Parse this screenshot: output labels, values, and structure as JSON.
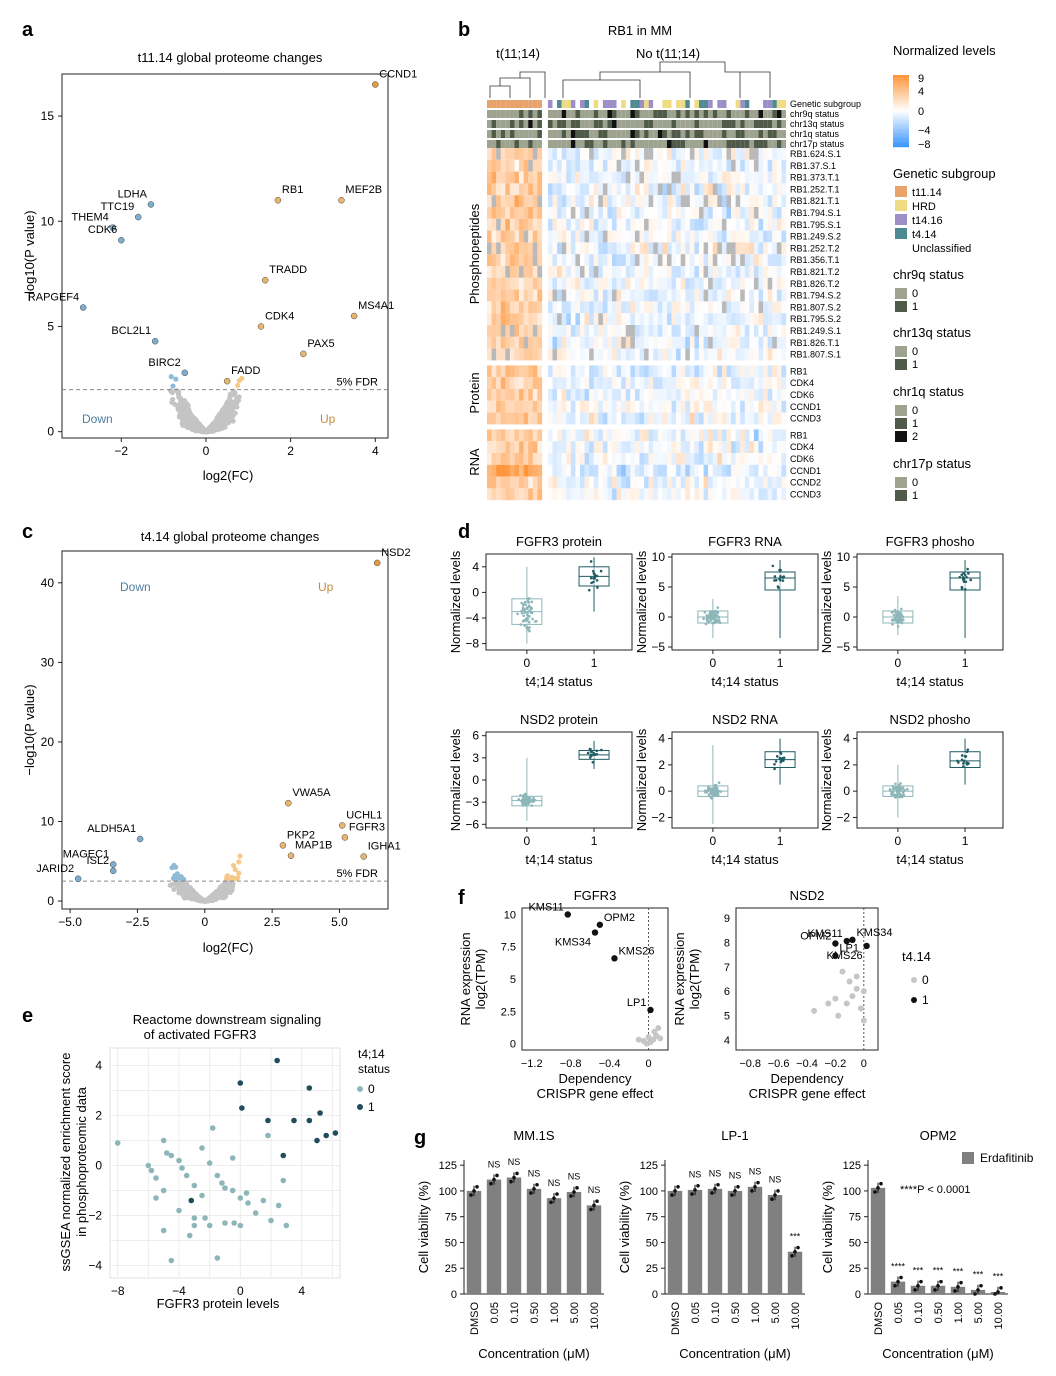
{
  "panels": {
    "a": {
      "letter": "a",
      "title": "t11.14 global proteome changes",
      "xlabel": "log2(FC)",
      "ylabel": "−log10(P value)",
      "xticks": [
        "−2",
        "0",
        "2",
        "4"
      ],
      "yticks": [
        "0",
        "5",
        "10",
        "15"
      ],
      "fdr": "5% FDR",
      "down": "Down",
      "up": "Up"
    },
    "b": {
      "letter": "b",
      "title": "RB1 in MM",
      "group1": "t(11;14)",
      "group2": "No t(11;14)",
      "annotation_rows": [
        "Genetic subgroup",
        "chr9q status",
        "chr13q status",
        "chr1q status",
        "chr17p status"
      ],
      "section_labels": [
        "Phosphopeptides",
        "Protein",
        "RNA"
      ],
      "phospho_rows": [
        "RB1.624.S.1",
        "RB1.37.S.1",
        "RB1.373.T.1",
        "RB1.252.T.1",
        "RB1.821.T.1",
        "RB1.794.S.1",
        "RB1.795.S.1",
        "RB1.249.S.2",
        "RB1.252.T.2",
        "RB1.356.T.1",
        "RB1.821.T.2",
        "RB1.826.T.2",
        "RB1.794.S.2",
        "RB1.807.S.2",
        "RB1.795.S.2",
        "RB1.249.S.1",
        "RB1.826.T.1",
        "RB1.807.S.1"
      ],
      "protein_rows": [
        "RB1",
        "CDK4",
        "CDK6",
        "CCND1",
        "CCND3"
      ],
      "rna_rows": [
        "RB1",
        "CDK4",
        "CDK6",
        "CCND1",
        "CCND2",
        "CCND3"
      ],
      "legend": {
        "scale_title": "Normalized levels",
        "scale_ticks": [
          "9",
          "4",
          "0",
          "−4",
          "−8"
        ],
        "subgroup_title": "Genetic subgroup",
        "subgroups": [
          {
            "name": "t11.14",
            "color": "#e8a36a"
          },
          {
            "name": "HRD",
            "color": "#efdc82"
          },
          {
            "name": "t14.16",
            "color": "#9d8ec7"
          },
          {
            "name": "t4.14",
            "color": "#4d8a94"
          },
          {
            "name": "Unclassified",
            "color": "#ffffff"
          }
        ],
        "chr9q_title": "chr9q status",
        "chr9q": [
          "0",
          "1"
        ],
        "chr13q_title": "chr13q status",
        "chr13q": [
          "0",
          "1"
        ],
        "chr1q_title": "chr1q status",
        "chr1q": [
          "0",
          "1",
          "2"
        ],
        "chr17p_title": "chr17p status",
        "chr17p": [
          "0",
          "1"
        ]
      }
    },
    "c": {
      "letter": "c",
      "title": "t4.14 global proteome changes",
      "xlabel": "log2(FC)",
      "ylabel": "−log10(P value)",
      "xticks": [
        "−5.0",
        "−2.5",
        "0",
        "2.5",
        "5.0"
      ],
      "yticks": [
        "0",
        "10",
        "20",
        "30",
        "40"
      ],
      "fdr": "5% FDR",
      "down": "Down",
      "up": "Up"
    },
    "d": {
      "letter": "d",
      "xlabel": "t4;14 status",
      "ylabel": "Normalized levels",
      "xticks": [
        "0",
        "1"
      ]
    },
    "e": {
      "letter": "e",
      "title_line1": "Reactome downstream signaling",
      "title_line2": "of activated FGFR3",
      "xlabel": "FGFR3 protein levels",
      "ylabel_line1": "ssGSEA normalized enrichment score",
      "ylabel_line2": "in phosphoproteomic data",
      "xticks": [
        "−8",
        "−4",
        "0",
        "4"
      ],
      "yticks": [
        "−4",
        "−2",
        "0",
        "2",
        "4"
      ],
      "legend_title_line1": "t4;14",
      "legend_title_line2": "status",
      "legend": [
        "0",
        "1"
      ]
    },
    "f": {
      "letter": "f",
      "xlabel_line1": "Dependency",
      "xlabel_line2": "CRISPR gene effect",
      "ylabel_line1": "RNA expression",
      "ylabel_line2": "log2(TPM)",
      "legend_title": "t4.14",
      "legend": [
        "0",
        "1"
      ]
    },
    "g": {
      "letter": "g",
      "ylabel": "Cell viability (%)",
      "xlabel": "Concentration (μM)",
      "categories": [
        "DMSO",
        "0.05",
        "0.10",
        "0.50",
        "1.00",
        "5.00",
        "10.00"
      ],
      "yticks": [
        "0",
        "25",
        "50",
        "75",
        "100",
        "125"
      ],
      "legend": "Erdafitinib",
      "pvalue_note": "****P < 0.0001"
    }
  },
  "chart_data": [
    {
      "panel": "a",
      "type": "scatter",
      "title": "t11.14 global proteome changes",
      "xlabel": "log2(FC)",
      "ylabel": "−log10(P value)",
      "xlim": [
        -3.4,
        4.3
      ],
      "ylim": [
        -0.3,
        17
      ],
      "threshold_y": 2.0,
      "labeled_points": [
        {
          "label": "CCND1",
          "x": 4.0,
          "y": 16.5
        },
        {
          "label": "LDHA",
          "x": -1.3,
          "y": 10.8
        },
        {
          "label": "TTC19",
          "x": -1.6,
          "y": 10.2
        },
        {
          "label": "THEM4",
          "x": -2.2,
          "y": 9.7
        },
        {
          "label": "CDK6",
          "x": -2.0,
          "y": 9.1
        },
        {
          "label": "RB1",
          "x": 1.7,
          "y": 11.0
        },
        {
          "label": "MEF2B",
          "x": 3.2,
          "y": 11.0
        },
        {
          "label": "RAPGEF4",
          "x": -2.9,
          "y": 5.9
        },
        {
          "label": "TRADD",
          "x": 1.4,
          "y": 7.2
        },
        {
          "label": "CDK4",
          "x": 1.3,
          "y": 5.0
        },
        {
          "label": "MS4A1",
          "x": 3.5,
          "y": 5.5
        },
        {
          "label": "BCL2L1",
          "x": -1.2,
          "y": 4.3
        },
        {
          "label": "PAX5",
          "x": 2.3,
          "y": 3.7
        },
        {
          "label": "BIRC2",
          "x": -0.5,
          "y": 2.8
        },
        {
          "label": "FADD",
          "x": 0.5,
          "y": 2.4
        }
      ],
      "colors": {
        "down": "#8ebbd8",
        "up": "#f6c98b",
        "ns": "#c4c4c4",
        "highlight": "#e39b3e"
      }
    },
    {
      "panel": "b",
      "type": "heatmap",
      "title": "RB1 in MM",
      "columns_t11_14": 12,
      "columns_other": 52,
      "rows": [
        "RB1.624.S.1",
        "RB1.37.S.1",
        "RB1.373.T.1",
        "RB1.252.T.1",
        "RB1.821.T.1",
        "RB1.794.S.1",
        "RB1.795.S.1",
        "RB1.249.S.2",
        "RB1.252.T.2",
        "RB1.356.T.1",
        "RB1.821.T.2",
        "RB1.826.T.2",
        "RB1.794.S.2",
        "RB1.807.S.2",
        "RB1.795.S.2",
        "RB1.249.S.1",
        "RB1.826.T.1",
        "RB1.807.S.1",
        "RB1",
        "CDK4",
        "CDK6",
        "CCND1",
        "CCND3",
        "RB1",
        "CDK4",
        "CDK6",
        "CCND1",
        "CCND2",
        "CCND3"
      ],
      "color_range": [
        -8,
        9
      ]
    },
    {
      "panel": "c",
      "type": "scatter",
      "title": "t4.14 global proteome changes",
      "xlabel": "log2(FC)",
      "ylabel": "−log10(P value)",
      "xlim": [
        -5.3,
        6.8
      ],
      "ylim": [
        -1,
        44
      ],
      "threshold_y": 2.5,
      "labeled_points": [
        {
          "label": "NSD2",
          "x": 6.4,
          "y": 42.5
        },
        {
          "label": "VWA5A",
          "x": 3.1,
          "y": 12.3
        },
        {
          "label": "UCHL1",
          "x": 5.1,
          "y": 9.5
        },
        {
          "label": "FGFR3",
          "x": 5.2,
          "y": 8.0
        },
        {
          "label": "IGHA1",
          "x": 5.9,
          "y": 5.6
        },
        {
          "label": "PKP2",
          "x": 2.9,
          "y": 7.0
        },
        {
          "label": "MAP1B",
          "x": 3.2,
          "y": 5.7
        },
        {
          "label": "ALDH5A1",
          "x": -2.4,
          "y": 7.8
        },
        {
          "label": "MAGEC1",
          "x": -3.4,
          "y": 4.6
        },
        {
          "label": "JARID2",
          "x": -4.7,
          "y": 2.8
        },
        {
          "label": "ISL2",
          "x": -3.4,
          "y": 3.8
        }
      ]
    },
    {
      "panel": "d",
      "type": "box",
      "x": [
        "0",
        "1"
      ],
      "plots": [
        {
          "name": "FGFR3 protein",
          "ylim": [
            -9,
            6
          ],
          "yticks": [
            -8,
            -4,
            0,
            4
          ],
          "group0": {
            "q1": -5,
            "median": -3,
            "q3": -1,
            "low": -8,
            "high": 4
          },
          "group1": {
            "q1": 1,
            "median": 2.5,
            "q3": 4,
            "low": -3,
            "high": 5.5
          }
        },
        {
          "name": "FGFR3 RNA",
          "ylim": [
            -5.5,
            10.5
          ],
          "yticks": [
            -5,
            0,
            5,
            10
          ],
          "group0": {
            "q1": -1,
            "median": 0,
            "q3": 1,
            "low": -3.5,
            "high": 3
          },
          "group1": {
            "q1": 4.5,
            "median": 6.5,
            "q3": 7.5,
            "low": -3.5,
            "high": 9.5
          }
        },
        {
          "name": "FGFR3 phosho",
          "ylim": [
            -5.5,
            10.5
          ],
          "yticks": [
            -5,
            0,
            5,
            10
          ],
          "group0": {
            "q1": -1,
            "median": 0,
            "q3": 1,
            "low": -3,
            "high": 3.5
          },
          "group1": {
            "q1": 4.5,
            "median": 6.5,
            "q3": 7.5,
            "low": -3.5,
            "high": 9.5
          }
        },
        {
          "name": "NSD2 protein",
          "ylim": [
            -6.5,
            6.5
          ],
          "yticks": [
            -6,
            -3,
            0,
            3,
            6
          ],
          "group0": {
            "q1": -3.5,
            "median": -2.8,
            "q3": -2.2,
            "low": -5.5,
            "high": 3
          },
          "group1": {
            "q1": 2.8,
            "median": 3.4,
            "q3": 4,
            "low": 1.5,
            "high": 5.3
          }
        },
        {
          "name": "NSD2 RNA",
          "ylim": [
            -2.8,
            4.5
          ],
          "yticks": [
            -2,
            0,
            2,
            4
          ],
          "group0": {
            "q1": -0.4,
            "median": 0,
            "q3": 0.4,
            "low": -2.5,
            "high": 3.5
          },
          "group1": {
            "q1": 1.8,
            "median": 2.4,
            "q3": 3,
            "low": 0.5,
            "high": 4
          }
        },
        {
          "name": "NSD2 phosho",
          "ylim": [
            -2.8,
            4.5
          ],
          "yticks": [
            -2,
            0,
            2,
            4
          ],
          "group0": {
            "q1": -0.4,
            "median": 0,
            "q3": 0.4,
            "low": -2,
            "high": 2
          },
          "group1": {
            "q1": 1.8,
            "median": 2.3,
            "q3": 3,
            "low": 0.5,
            "high": 4
          }
        }
      ]
    },
    {
      "panel": "e",
      "type": "scatter",
      "title": "Reactome downstream signaling of activated FGFR3",
      "xlim": [
        -8.5,
        6.5
      ],
      "ylim": [
        -4.5,
        4.7
      ],
      "series": [
        {
          "name": "0",
          "x": [
            -8,
            -6,
            -5.5,
            -5,
            -5,
            -4.5,
            -4,
            -4,
            -3.5,
            -3,
            -3,
            -2.5,
            -2.5,
            -2,
            -2,
            -1.5,
            -1.5,
            -1,
            -1,
            -0.5,
            -0.5,
            0,
            0,
            0.5,
            1,
            1.5,
            2,
            2.5,
            3,
            -5.5,
            -5,
            -4.5,
            -3.8,
            -3,
            -2.3,
            -1.8,
            -1.2,
            -0.4,
            0.4,
            1.8,
            2.8,
            -5.8,
            -4.8,
            -3.3
          ],
          "y": [
            0.9,
            0,
            -0.5,
            1,
            -1,
            0.4,
            -1.8,
            0.2,
            -0.4,
            -2.1,
            -0.8,
            0.7,
            -1.2,
            0.1,
            -2.4,
            -0.4,
            -3.7,
            -0.9,
            -2.3,
            0.3,
            -1,
            -1.3,
            -2.4,
            -1.5,
            -1.9,
            -1.4,
            -2.2,
            -1.6,
            -2.4,
            -1.3,
            -2.6,
            -3.8,
            -0.1,
            -2.4,
            -2.1,
            1.5,
            -0.7,
            -2.3,
            -1.1,
            1.2,
            -0.6,
            -0.2,
            0.5,
            -2.8
          ]
        },
        {
          "name": "1",
          "x": [
            0,
            0.1,
            2.4,
            3.5,
            4.5,
            4.5,
            5.2,
            5.6,
            6.2,
            5,
            1.8,
            -3.2,
            2.8
          ],
          "y": [
            3.3,
            2.3,
            4.2,
            1.8,
            3.1,
            1.8,
            2.1,
            1.2,
            1.3,
            1.0,
            1.8,
            -1.4,
            0.4
          ]
        }
      ]
    },
    {
      "panel": "f",
      "type": "scatter",
      "plots": [
        {
          "name": "FGFR3",
          "xlim": [
            -1.3,
            0.2
          ],
          "ylim": [
            -0.5,
            10.5
          ],
          "xticks": [
            -1.2,
            -0.8,
            -0.4,
            0
          ],
          "yticks": [
            0,
            2.5,
            5,
            7.5,
            10
          ],
          "labeled": [
            {
              "label": "KMS11",
              "x": -0.83,
              "y": 10.0
            },
            {
              "label": "OPM2",
              "x": -0.5,
              "y": 9.2
            },
            {
              "label": "KMS34",
              "x": -0.55,
              "y": 8.6
            },
            {
              "label": "KMS26",
              "x": -0.35,
              "y": 6.6
            },
            {
              "label": "LP1",
              "x": 0.02,
              "y": 2.6
            }
          ],
          "others_x": [
            -0.1,
            -0.05,
            0.0,
            0.02,
            0.05,
            0.08,
            0.1,
            0.12,
            -0.02,
            0.06
          ],
          "others_y": [
            0.3,
            0.2,
            0.5,
            0.1,
            0.3,
            0.6,
            1.2,
            0.4,
            0.0,
            0.9
          ]
        },
        {
          "name": "NSD2",
          "xlim": [
            -0.9,
            0.1
          ],
          "ylim": [
            3.6,
            9.4
          ],
          "xticks": [
            -0.8,
            -0.6,
            -0.4,
            -0.2,
            0
          ],
          "yticks": [
            4,
            5,
            6,
            7,
            8,
            9
          ],
          "labeled": [
            {
              "label": "OPM2",
              "x": -0.2,
              "y": 7.95
            },
            {
              "label": "KMS34",
              "x": -0.08,
              "y": 8.1
            },
            {
              "label": "KMS26",
              "x": 0.02,
              "y": 7.85
            },
            {
              "label": "LP1",
              "x": -0.2,
              "y": 7.45
            },
            {
              "label": "KMS11",
              "x": -0.12,
              "y": 8.05
            }
          ],
          "others_x": [
            -0.35,
            -0.15,
            -0.1,
            -0.05,
            0,
            -0.2,
            -0.12,
            -0.08,
            -0.02,
            -0.18,
            -0.05,
            0.0,
            -0.25
          ],
          "others_y": [
            5.2,
            6.8,
            6.4,
            6.1,
            6.0,
            5.7,
            5.5,
            5.8,
            5.3,
            5.0,
            6.6,
            4.8,
            5.5
          ]
        }
      ]
    },
    {
      "panel": "g",
      "type": "bar",
      "categories": [
        "DMSO",
        "0.05",
        "0.10",
        "0.50",
        "1.00",
        "5.00",
        "10.00"
      ],
      "ylim": [
        0,
        130
      ],
      "plots": [
        {
          "name": "MM.1S",
          "values": [
            100,
            111,
            113,
            102,
            93,
            99,
            86
          ],
          "sig": [
            "",
            "NS",
            "NS",
            "NS",
            "NS",
            "NS",
            "NS"
          ]
        },
        {
          "name": "LP-1",
          "values": [
            100,
            101,
            102,
            100,
            104,
            96,
            41
          ],
          "sig": [
            "",
            "NS",
            "NS",
            "NS",
            "NS",
            "NS",
            "***"
          ]
        },
        {
          "name": "OPM2",
          "values": [
            103,
            12,
            8,
            8,
            7,
            4,
            2
          ],
          "sig": [
            "",
            "****",
            "***",
            "***",
            "***",
            "***",
            "***"
          ]
        }
      ]
    }
  ]
}
